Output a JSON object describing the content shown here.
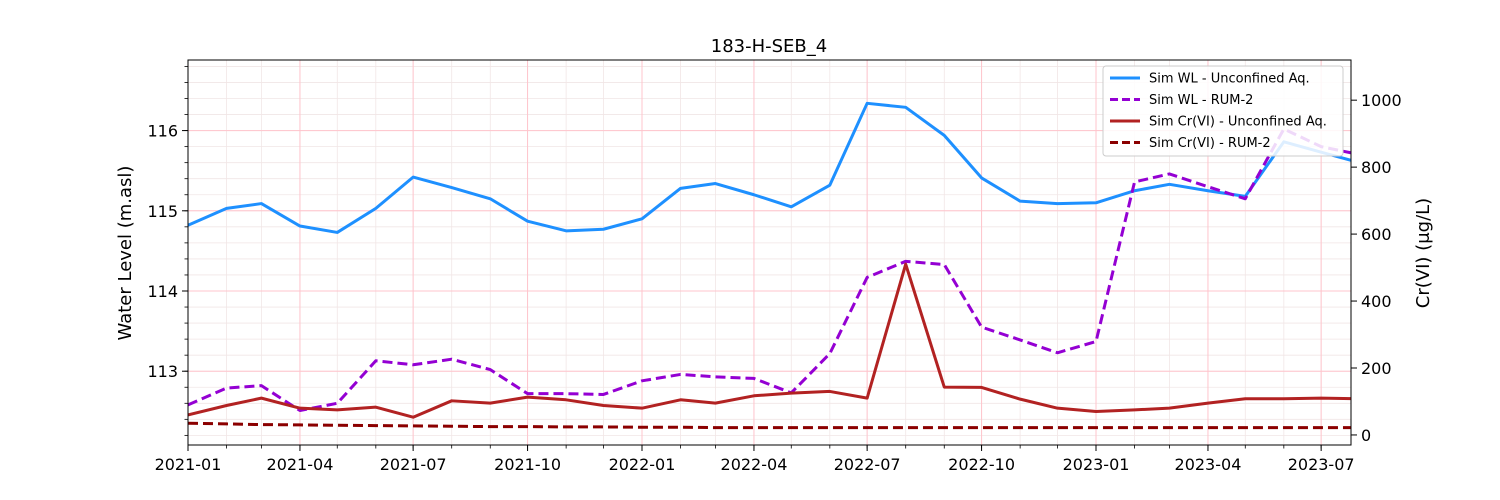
{
  "chart_data": {
    "type": "line",
    "title": "183-H-SEB_4",
    "ylabel_left": "Water Level (m.asl)",
    "ylabel_right": "Cr(VI) (μg/L)",
    "xlim": [
      "2021-01-01",
      "2023-07-25"
    ],
    "ylim_left": [
      112.08,
      116.88
    ],
    "ylim_right": [
      -30,
      1120
    ],
    "left_ticks": [
      113,
      114,
      115,
      116
    ],
    "right_ticks": [
      0,
      200,
      400,
      600,
      800,
      1000
    ],
    "x_ticks": [
      {
        "date": "2021-01-01",
        "label": "2021-01"
      },
      {
        "date": "2021-04-01",
        "label": "2021-04"
      },
      {
        "date": "2021-07-01",
        "label": "2021-07"
      },
      {
        "date": "2021-10-01",
        "label": "2021-10"
      },
      {
        "date": "2022-01-01",
        "label": "2022-01"
      },
      {
        "date": "2022-04-01",
        "label": "2022-04"
      },
      {
        "date": "2022-07-01",
        "label": "2022-07"
      },
      {
        "date": "2022-10-01",
        "label": "2022-10"
      },
      {
        "date": "2023-01-01",
        "label": "2023-01"
      },
      {
        "date": "2023-04-01",
        "label": "2023-04"
      },
      {
        "date": "2023-07-01",
        "label": "2023-07"
      }
    ],
    "grid": true,
    "legend_position": "top-right",
    "x": [
      "2021-01-01",
      "2021-02-01",
      "2021-03-01",
      "2021-04-01",
      "2021-05-01",
      "2021-06-01",
      "2021-07-01",
      "2021-08-01",
      "2021-09-01",
      "2021-10-01",
      "2021-11-01",
      "2021-12-01",
      "2022-01-01",
      "2022-02-01",
      "2022-03-01",
      "2022-04-01",
      "2022-05-01",
      "2022-06-01",
      "2022-07-01",
      "2022-08-01",
      "2022-09-01",
      "2022-10-01",
      "2022-11-01",
      "2022-12-01",
      "2023-01-01",
      "2023-02-01",
      "2023-03-01",
      "2023-04-01",
      "2023-05-01",
      "2023-06-01",
      "2023-07-01",
      "2023-08-01"
    ],
    "series": [
      {
        "name": "Sim WL - Unconfined Aq.",
        "axis": "left",
        "color": "#1e90ff",
        "dash": "solid",
        "values": [
          114.82,
          115.03,
          115.09,
          114.81,
          114.73,
          115.03,
          115.42,
          115.29,
          115.15,
          114.87,
          114.75,
          114.77,
          114.9,
          115.28,
          115.34,
          115.2,
          115.05,
          115.32,
          116.34,
          116.29,
          115.94,
          115.41,
          115.12,
          115.09,
          115.1,
          115.25,
          115.33,
          115.25,
          115.18,
          115.86,
          115.73,
          115.6
        ]
      },
      {
        "name": "Sim WL - RUM-2",
        "axis": "left",
        "color": "#9400d3",
        "dash": "dashed",
        "values": [
          112.58,
          112.79,
          112.82,
          112.51,
          112.6,
          113.13,
          113.08,
          113.15,
          113.02,
          112.72,
          112.72,
          112.71,
          112.88,
          112.96,
          112.93,
          112.91,
          112.73,
          113.22,
          114.17,
          114.37,
          114.33,
          113.55,
          113.39,
          113.23,
          113.37,
          115.36,
          115.46,
          115.3,
          115.15,
          116.02,
          115.8,
          115.7
        ]
      },
      {
        "name": "Sim Cr(VI) - Unconfined Aq.",
        "axis": "right",
        "color": "#b22222",
        "dash": "solid",
        "values": [
          60,
          88,
          110,
          80,
          75,
          83,
          53,
          102,
          95,
          113,
          105,
          88,
          80,
          105,
          95,
          117,
          125,
          130,
          110,
          510,
          143,
          142,
          107,
          80,
          70,
          75,
          80,
          95,
          108,
          108,
          110,
          108
        ]
      },
      {
        "name": "Sim Cr(VI) - RUM-2",
        "axis": "right",
        "color": "#8b0000",
        "dash": "dashed",
        "values": [
          35,
          33,
          31,
          30,
          29,
          28,
          27,
          26,
          25,
          25,
          24,
          24,
          23,
          23,
          22,
          22,
          22,
          22,
          22,
          22,
          22,
          22,
          22,
          22,
          22,
          22,
          22,
          22,
          22,
          22,
          22,
          22
        ]
      }
    ]
  }
}
